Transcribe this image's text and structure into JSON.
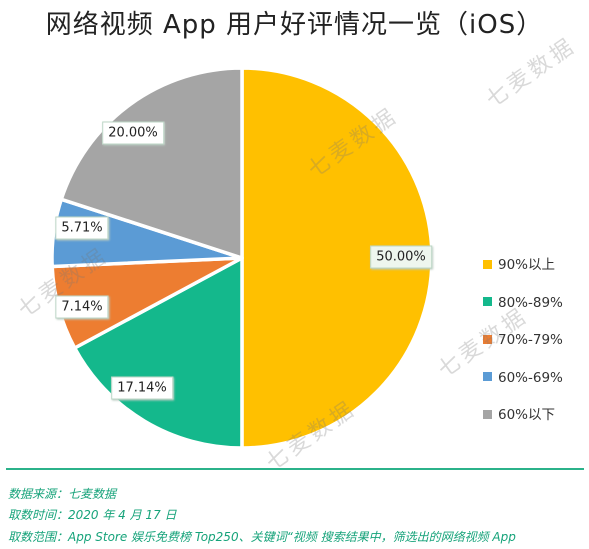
{
  "title": "网络视频 App 用户好评情况一览（iOS）",
  "chart_data": {
    "type": "pie",
    "title": "网络视频 App 用户好评情况一览（iOS）",
    "slices": [
      {
        "label": "90%以上",
        "value": 50.0,
        "display": "50.00%",
        "color": "#FFC000"
      },
      {
        "label": "80%-89%",
        "value": 17.14,
        "display": "17.14%",
        "color": "#14B88C"
      },
      {
        "label": "70%-79%",
        "value": 7.14,
        "display": "7.14%",
        "color": "#ED7D31"
      },
      {
        "label": "60%-69%",
        "value": 5.71,
        "display": "5.71%",
        "color": "#5B9BD5"
      },
      {
        "label": "60%以下",
        "value": 20.0,
        "display": "20.00%",
        "color": "#A5A5A5"
      }
    ],
    "legend_position": "right"
  },
  "watermark": "七麦数据",
  "footer": {
    "source": "数据来源：七麦数据",
    "time": "取数时间：2020 年 4 月 17 日",
    "scope": "取数范围：App Store 娱乐免费榜 Top250、关键词“视频 搜索结果中，筛选出的网络视频 App"
  }
}
